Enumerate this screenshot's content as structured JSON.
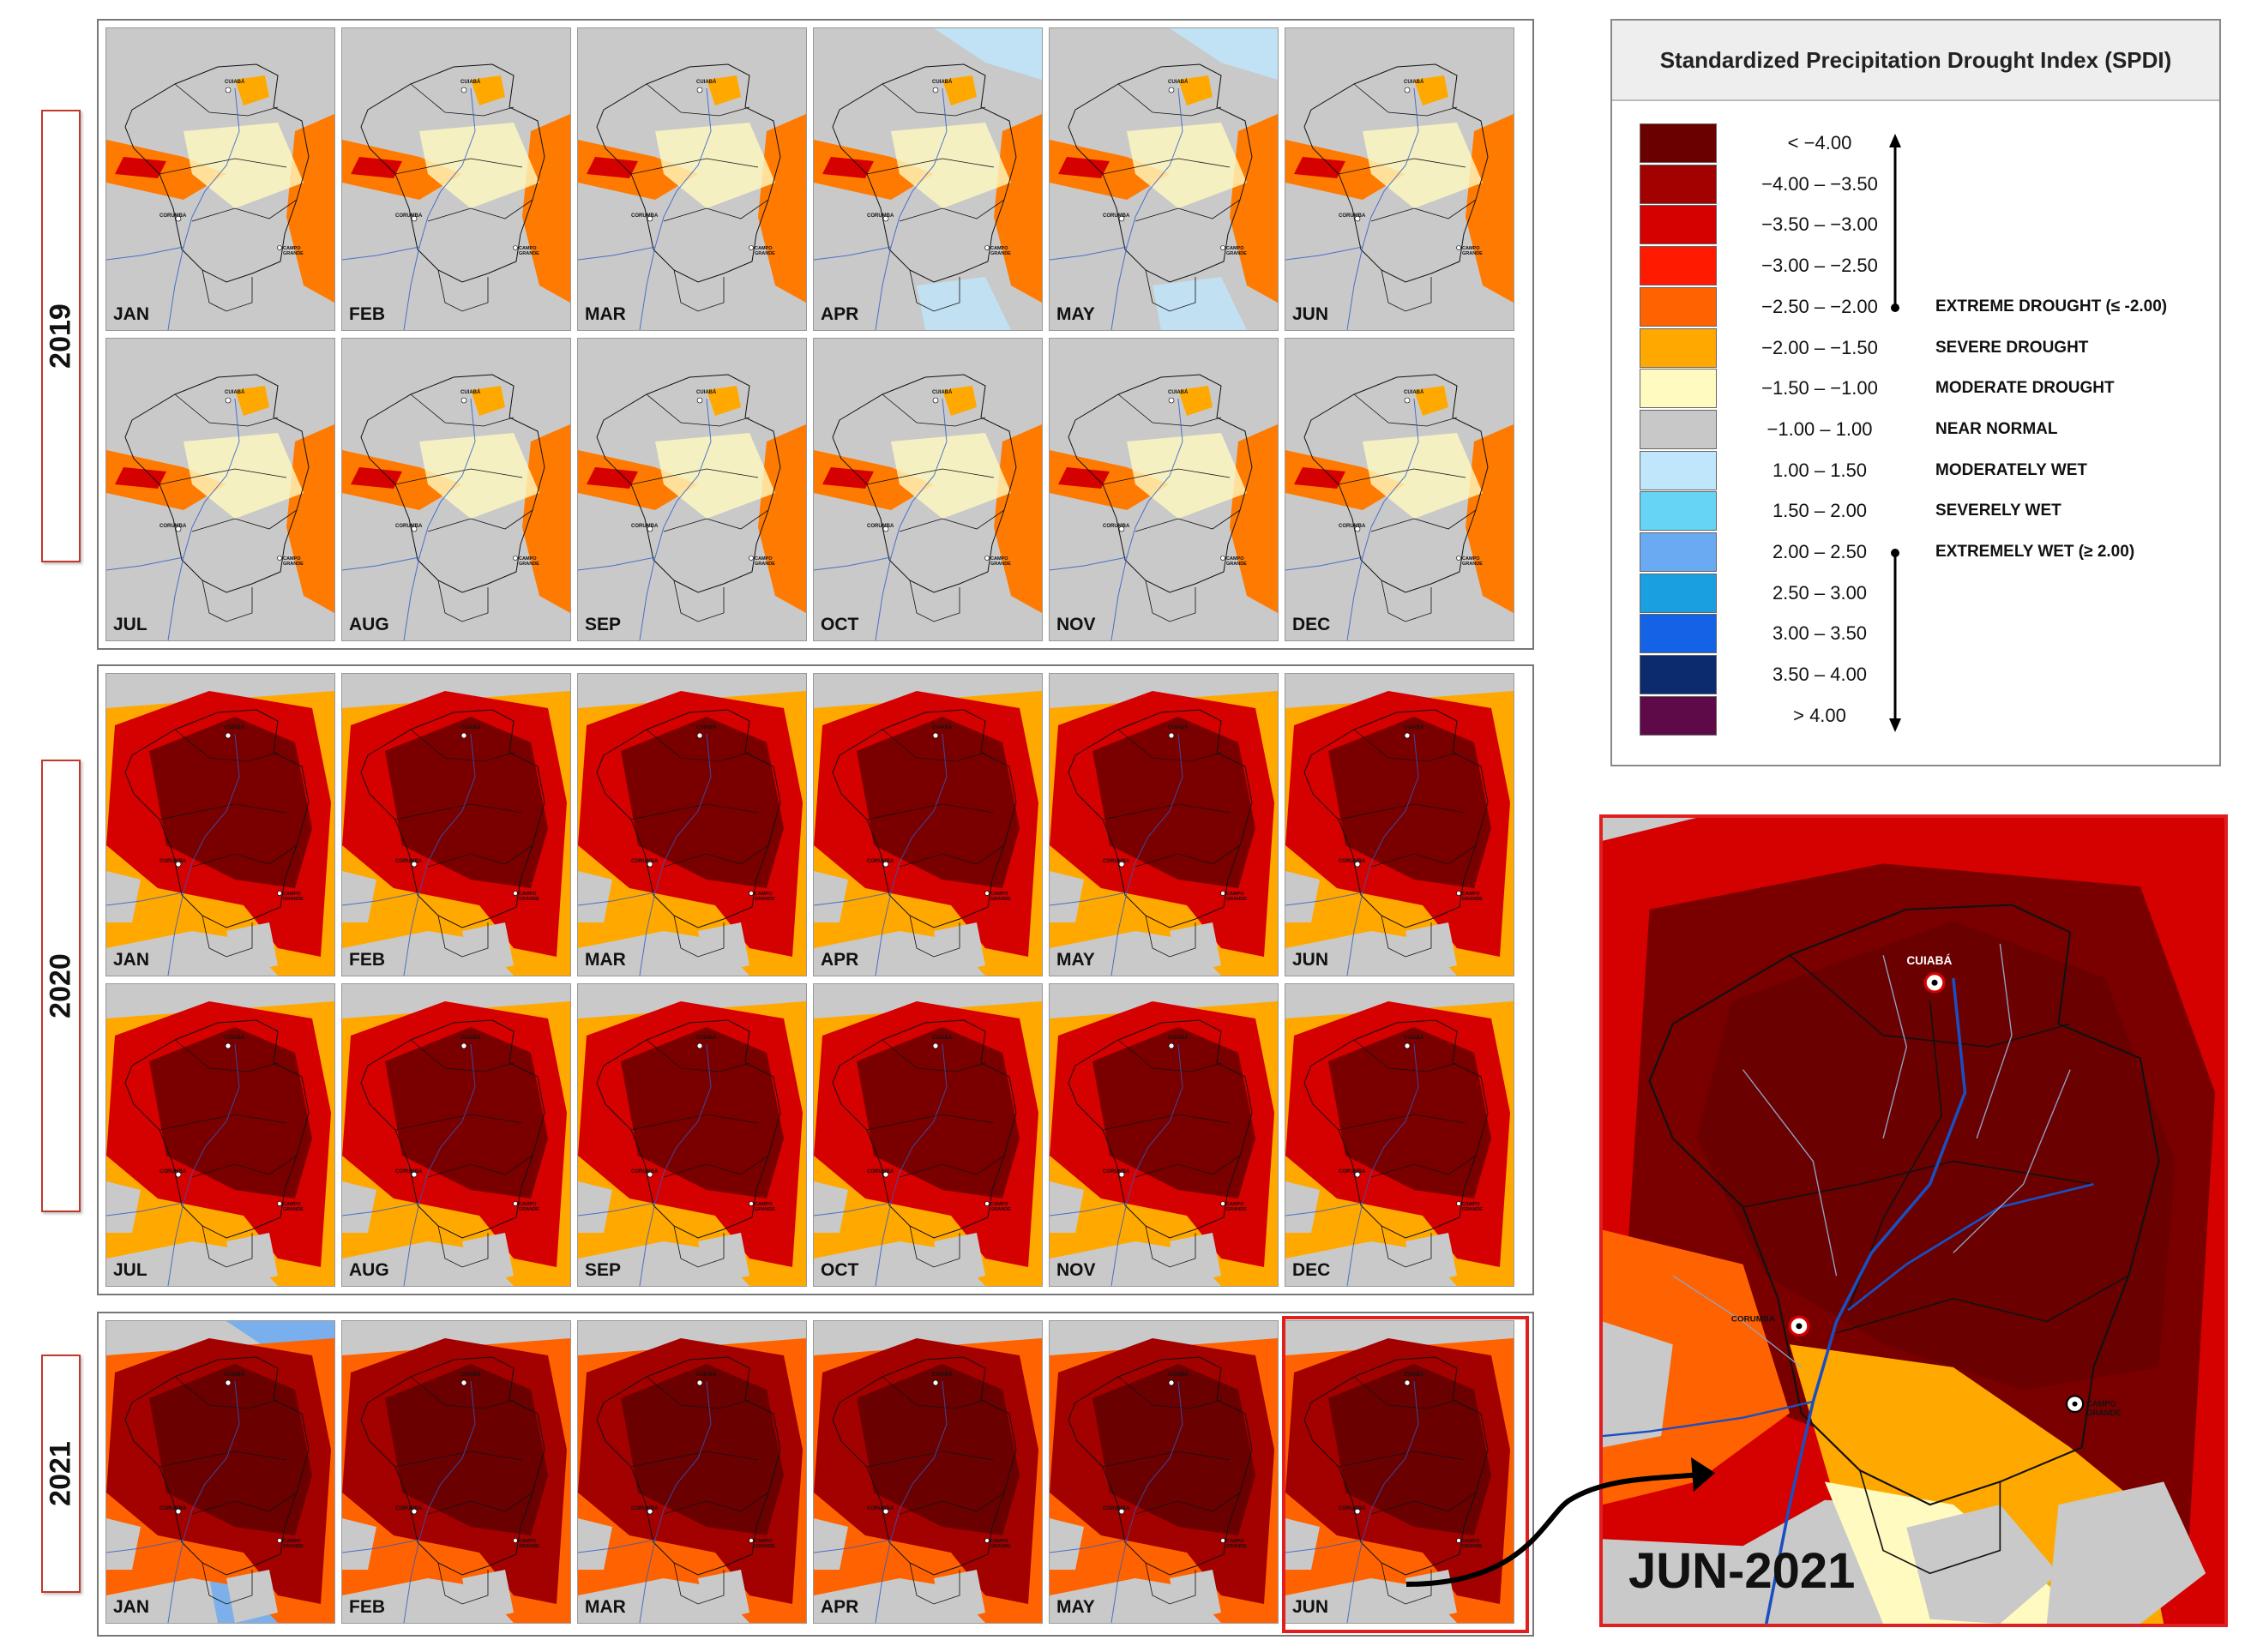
{
  "years": [
    {
      "label": "2019",
      "months": [
        "JAN",
        "FEB",
        "MAR",
        "APR",
        "MAY",
        "JUN",
        "JUL",
        "AUG",
        "SEP",
        "OCT",
        "NOV",
        "DEC"
      ]
    },
    {
      "label": "2020",
      "months": [
        "JAN",
        "FEB",
        "MAR",
        "APR",
        "MAY",
        "JUN",
        "JUL",
        "AUG",
        "SEP",
        "OCT",
        "NOV",
        "DEC"
      ]
    },
    {
      "label": "2021",
      "months": [
        "JAN",
        "FEB",
        "MAR",
        "APR",
        "MAY",
        "JUN"
      ]
    }
  ],
  "cities": {
    "cuiaba": "CUIABÁ",
    "corumba": "CORUMBA",
    "campo_grande_1": "CAMPO",
    "campo_grande_2": "GRANDE"
  },
  "legend": {
    "title": "Standardized Precipitation Drought Index (SPDI)",
    "classes": [
      {
        "range": "< −4.00",
        "color": "#6b0000",
        "label": ""
      },
      {
        "range": "−4.00 – −3.50",
        "color": "#a30000",
        "label": ""
      },
      {
        "range": "−3.50 – −3.00",
        "color": "#d50000",
        "label": ""
      },
      {
        "range": "−3.00 – −2.50",
        "color": "#ff1a00",
        "label": ""
      },
      {
        "range": "−2.50 – −2.00",
        "color": "#ff6200",
        "label": "EXTREME DROUGHT (≤ -2.00)"
      },
      {
        "range": "−2.00 – −1.50",
        "color": "#ffa800",
        "label": "SEVERE DROUGHT"
      },
      {
        "range": "−1.50 – −1.00",
        "color": "#fffac0",
        "label": "MODERATE DROUGHT"
      },
      {
        "range": "−1.00 – 1.00",
        "color": "#c8c8c8",
        "label": "NEAR NORMAL"
      },
      {
        "range": "1.00 – 1.50",
        "color": "#bfe6fb",
        "label": "MODERATELY WET"
      },
      {
        "range": "1.50 – 2.00",
        "color": "#66d5f5",
        "label": "SEVERELY WET"
      },
      {
        "range": "2.00 – 2.50",
        "color": "#6aaaf2",
        "label": "EXTREMELY WET (≥ 2.00)"
      },
      {
        "range": "2.50 – 3.00",
        "color": "#1a9fe0",
        "label": ""
      },
      {
        "range": "3.00 – 3.50",
        "color": "#1463e6",
        "label": ""
      },
      {
        "range": "3.50 – 4.00",
        "color": "#0c2a6e",
        "label": ""
      },
      {
        "range": "> 4.00",
        "color": "#5e0a48",
        "label": ""
      }
    ]
  },
  "zoom": {
    "title": "JUN-2021"
  }
}
